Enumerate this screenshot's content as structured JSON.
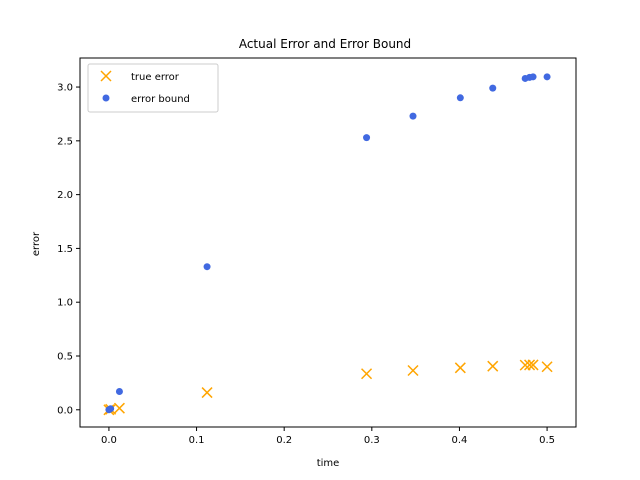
{
  "chart_data": {
    "type": "scatter",
    "title": "Actual Error and Error Bound",
    "xlabel": "time",
    "ylabel": "error",
    "xlim": [
      -0.033,
      0.533
    ],
    "ylim": [
      -0.16,
      3.27
    ],
    "x_ticks": [
      0.0,
      0.1,
      0.2,
      0.3,
      0.4,
      0.5
    ],
    "x_tick_labels": [
      "0.0",
      "0.1",
      "0.2",
      "0.3",
      "0.4",
      "0.5"
    ],
    "y_ticks": [
      0.0,
      0.5,
      1.0,
      1.5,
      2.0,
      2.5,
      3.0
    ],
    "y_tick_labels": [
      "0.0",
      "0.5",
      "1.0",
      "1.5",
      "2.0",
      "2.5",
      "3.0"
    ],
    "grid": false,
    "legend_position": "top-left",
    "series": [
      {
        "name": "true error",
        "marker": "x",
        "color": "#FFA500",
        "points": [
          {
            "x": 0.0,
            "y": 0.0
          },
          {
            "x": 0.002,
            "y": 0.005
          },
          {
            "x": 0.012,
            "y": 0.015
          },
          {
            "x": 0.112,
            "y": 0.16
          },
          {
            "x": 0.294,
            "y": 0.335
          },
          {
            "x": 0.347,
            "y": 0.365
          },
          {
            "x": 0.401,
            "y": 0.39
          },
          {
            "x": 0.438,
            "y": 0.405
          },
          {
            "x": 0.475,
            "y": 0.415
          },
          {
            "x": 0.48,
            "y": 0.417
          },
          {
            "x": 0.484,
            "y": 0.417
          },
          {
            "x": 0.5,
            "y": 0.4
          }
        ]
      },
      {
        "name": "error bound",
        "marker": "o",
        "color": "#4169E1",
        "points": [
          {
            "x": 0.0,
            "y": 0.0
          },
          {
            "x": 0.002,
            "y": 0.01
          },
          {
            "x": 0.012,
            "y": 0.17
          },
          {
            "x": 0.112,
            "y": 1.33
          },
          {
            "x": 0.294,
            "y": 2.53
          },
          {
            "x": 0.347,
            "y": 2.73
          },
          {
            "x": 0.401,
            "y": 2.9
          },
          {
            "x": 0.438,
            "y": 2.99
          },
          {
            "x": 0.475,
            "y": 3.08
          },
          {
            "x": 0.48,
            "y": 3.09
          },
          {
            "x": 0.484,
            "y": 3.095
          },
          {
            "x": 0.5,
            "y": 3.095
          }
        ]
      }
    ]
  }
}
